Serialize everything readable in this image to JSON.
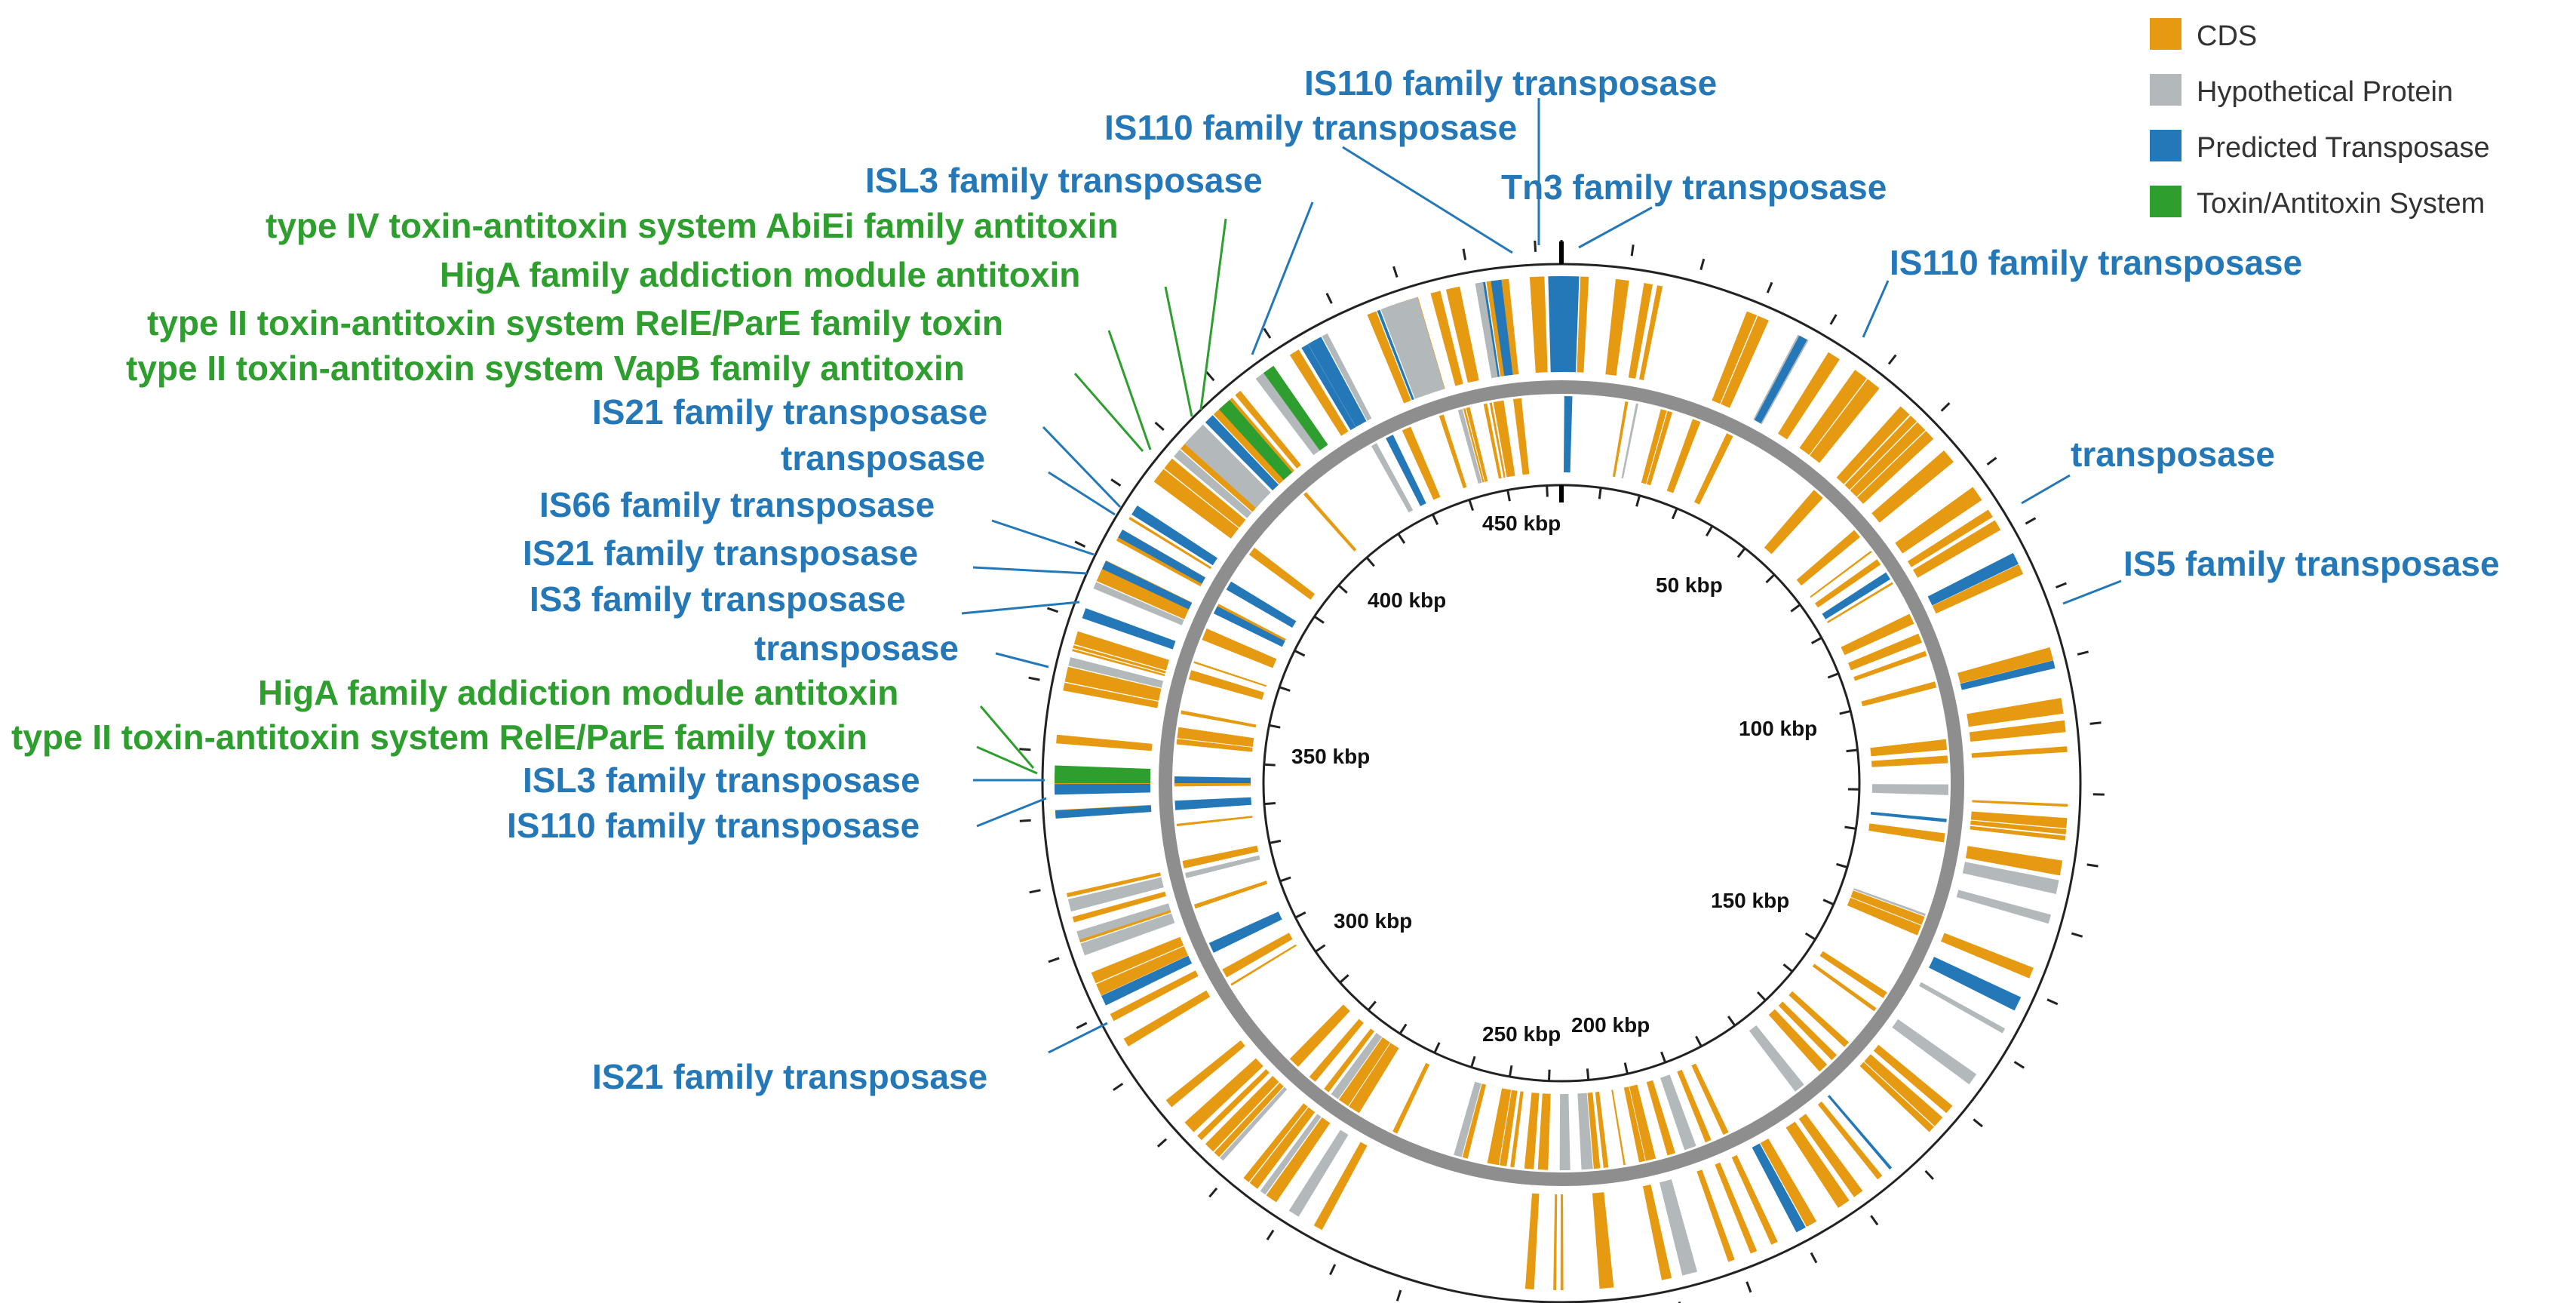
{
  "figure": {
    "legend": [
      {
        "label": "CDS",
        "color": "#E69A11"
      },
      {
        "label": "Hypothetical Protein",
        "color": "#B3B8BA"
      },
      {
        "label": "Predicted Transposase",
        "color": "#2478B8"
      },
      {
        "label": "Toxin/Antitoxin System",
        "color": "#2E9E2E"
      }
    ],
    "scale_ticks": [
      "50 kbp",
      "100 kbp",
      "150 kbp",
      "200 kbp",
      "250 kbp",
      "300 kbp",
      "350 kbp",
      "400 kbp",
      "450 kbp"
    ],
    "annotations": [
      {
        "text": "IS110 family transposase",
        "kind": "transposase"
      },
      {
        "text": "IS110 family transposase",
        "kind": "transposase"
      },
      {
        "text": "Tn3 family transposase",
        "kind": "transposase"
      },
      {
        "text": "ISL3 family transposase",
        "kind": "transposase"
      },
      {
        "text": "type IV toxin-antitoxin system AbiEi family antitoxin",
        "kind": "toxin"
      },
      {
        "text": "HigA family addiction module antitoxin",
        "kind": "toxin"
      },
      {
        "text": "type II toxin-antitoxin system RelE/ParE family toxin",
        "kind": "toxin"
      },
      {
        "text": "type II toxin-antitoxin system VapB family antitoxin",
        "kind": "toxin"
      },
      {
        "text": "IS110 family transposase",
        "kind": "transposase"
      },
      {
        "text": "IS21 family transposase",
        "kind": "transposase"
      },
      {
        "text": "transposase",
        "kind": "transposase"
      },
      {
        "text": "transposase",
        "kind": "transposase"
      },
      {
        "text": "IS66 family transposase",
        "kind": "transposase"
      },
      {
        "text": "IS21 family transposase",
        "kind": "transposase"
      },
      {
        "text": "IS5 family transposase",
        "kind": "transposase"
      },
      {
        "text": "IS3 family transposase",
        "kind": "transposase"
      },
      {
        "text": "transposase",
        "kind": "transposase"
      },
      {
        "text": "HigA family addiction module antitoxin",
        "kind": "toxin"
      },
      {
        "text": "type II toxin-antitoxin system RelE/ParE family toxin",
        "kind": "toxin"
      },
      {
        "text": "ISL3 family transposase",
        "kind": "transposase"
      },
      {
        "text": "IS110 family transposase",
        "kind": "transposase"
      },
      {
        "text": "IS21 family transposase",
        "kind": "transposase"
      }
    ],
    "colors": {
      "transposase_label": "#2478B8",
      "toxin_label": "#2E9E2E",
      "backbone": "#8E8E8E",
      "outline": "#222222"
    }
  }
}
